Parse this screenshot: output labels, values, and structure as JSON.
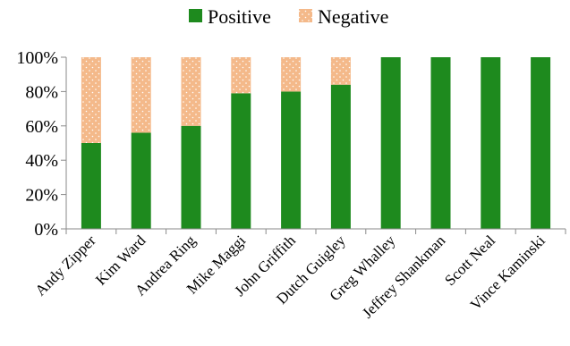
{
  "chart_data": {
    "type": "bar",
    "stacked": true,
    "percent_stacked": true,
    "categories": [
      "Andy Zipper",
      "Kim Ward",
      "Andrea Ring",
      "Mike Maggi",
      "John Griffith",
      "Dutch Guigley",
      "Greg Whalley",
      "Jeffrey Shankman",
      "Scott Neal",
      "Vince Kaminski"
    ],
    "series": [
      {
        "name": "Positive",
        "color": "#1e8a1e",
        "pattern": "solid",
        "values": [
          50,
          56,
          60,
          79,
          80,
          84,
          100,
          100,
          100,
          100
        ]
      },
      {
        "name": "Negative",
        "color": "#f4b98a",
        "pattern": "dotted",
        "values": [
          50,
          44,
          40,
          21,
          20,
          16,
          0,
          0,
          0,
          0
        ]
      }
    ],
    "ylim": [
      0,
      100
    ],
    "yticks": [
      "0%",
      "20%",
      "40%",
      "60%",
      "80%",
      "100%"
    ],
    "grid": false,
    "legend_position": "top-center",
    "title": "",
    "xlabel": "",
    "ylabel": ""
  }
}
